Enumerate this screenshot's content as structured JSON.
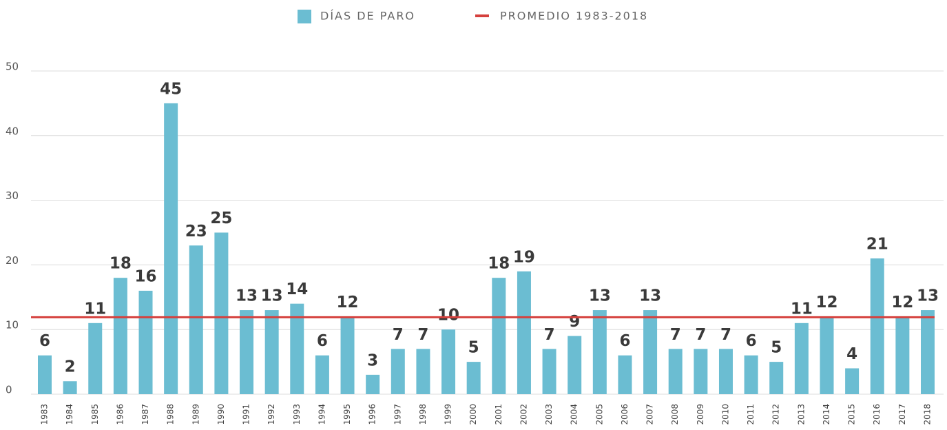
{
  "chart_data": {
    "type": "bar",
    "categories": [
      "1983",
      "1984",
      "1985",
      "1986",
      "1987",
      "1988",
      "1989",
      "1990",
      "1991",
      "1992",
      "1993",
      "1994",
      "1995",
      "1996",
      "1997",
      "1998",
      "1999",
      "2000",
      "2001",
      "2002",
      "2003",
      "2004",
      "2005",
      "2006",
      "2007",
      "2008",
      "2009",
      "2010",
      "2011",
      "2012",
      "2013",
      "2014",
      "2015",
      "2016",
      "2017",
      "2018"
    ],
    "series": [
      {
        "name": "DÍAS DE PARO",
        "color": "#6bbdd2",
        "values": [
          6,
          2,
          11,
          18,
          16,
          45,
          23,
          25,
          13,
          13,
          14,
          6,
          12,
          3,
          7,
          7,
          10,
          5,
          18,
          19,
          7,
          9,
          13,
          6,
          13,
          7,
          7,
          7,
          6,
          5,
          11,
          12,
          4,
          21,
          12,
          13
        ]
      }
    ],
    "average": {
      "name": "PROMEDIO 1983-2018",
      "color": "#d5403d",
      "value": 11.9
    },
    "ylim": [
      0,
      50
    ],
    "yticks": [
      0,
      10,
      20,
      30,
      40,
      50
    ],
    "grid": true,
    "legend": "top"
  }
}
